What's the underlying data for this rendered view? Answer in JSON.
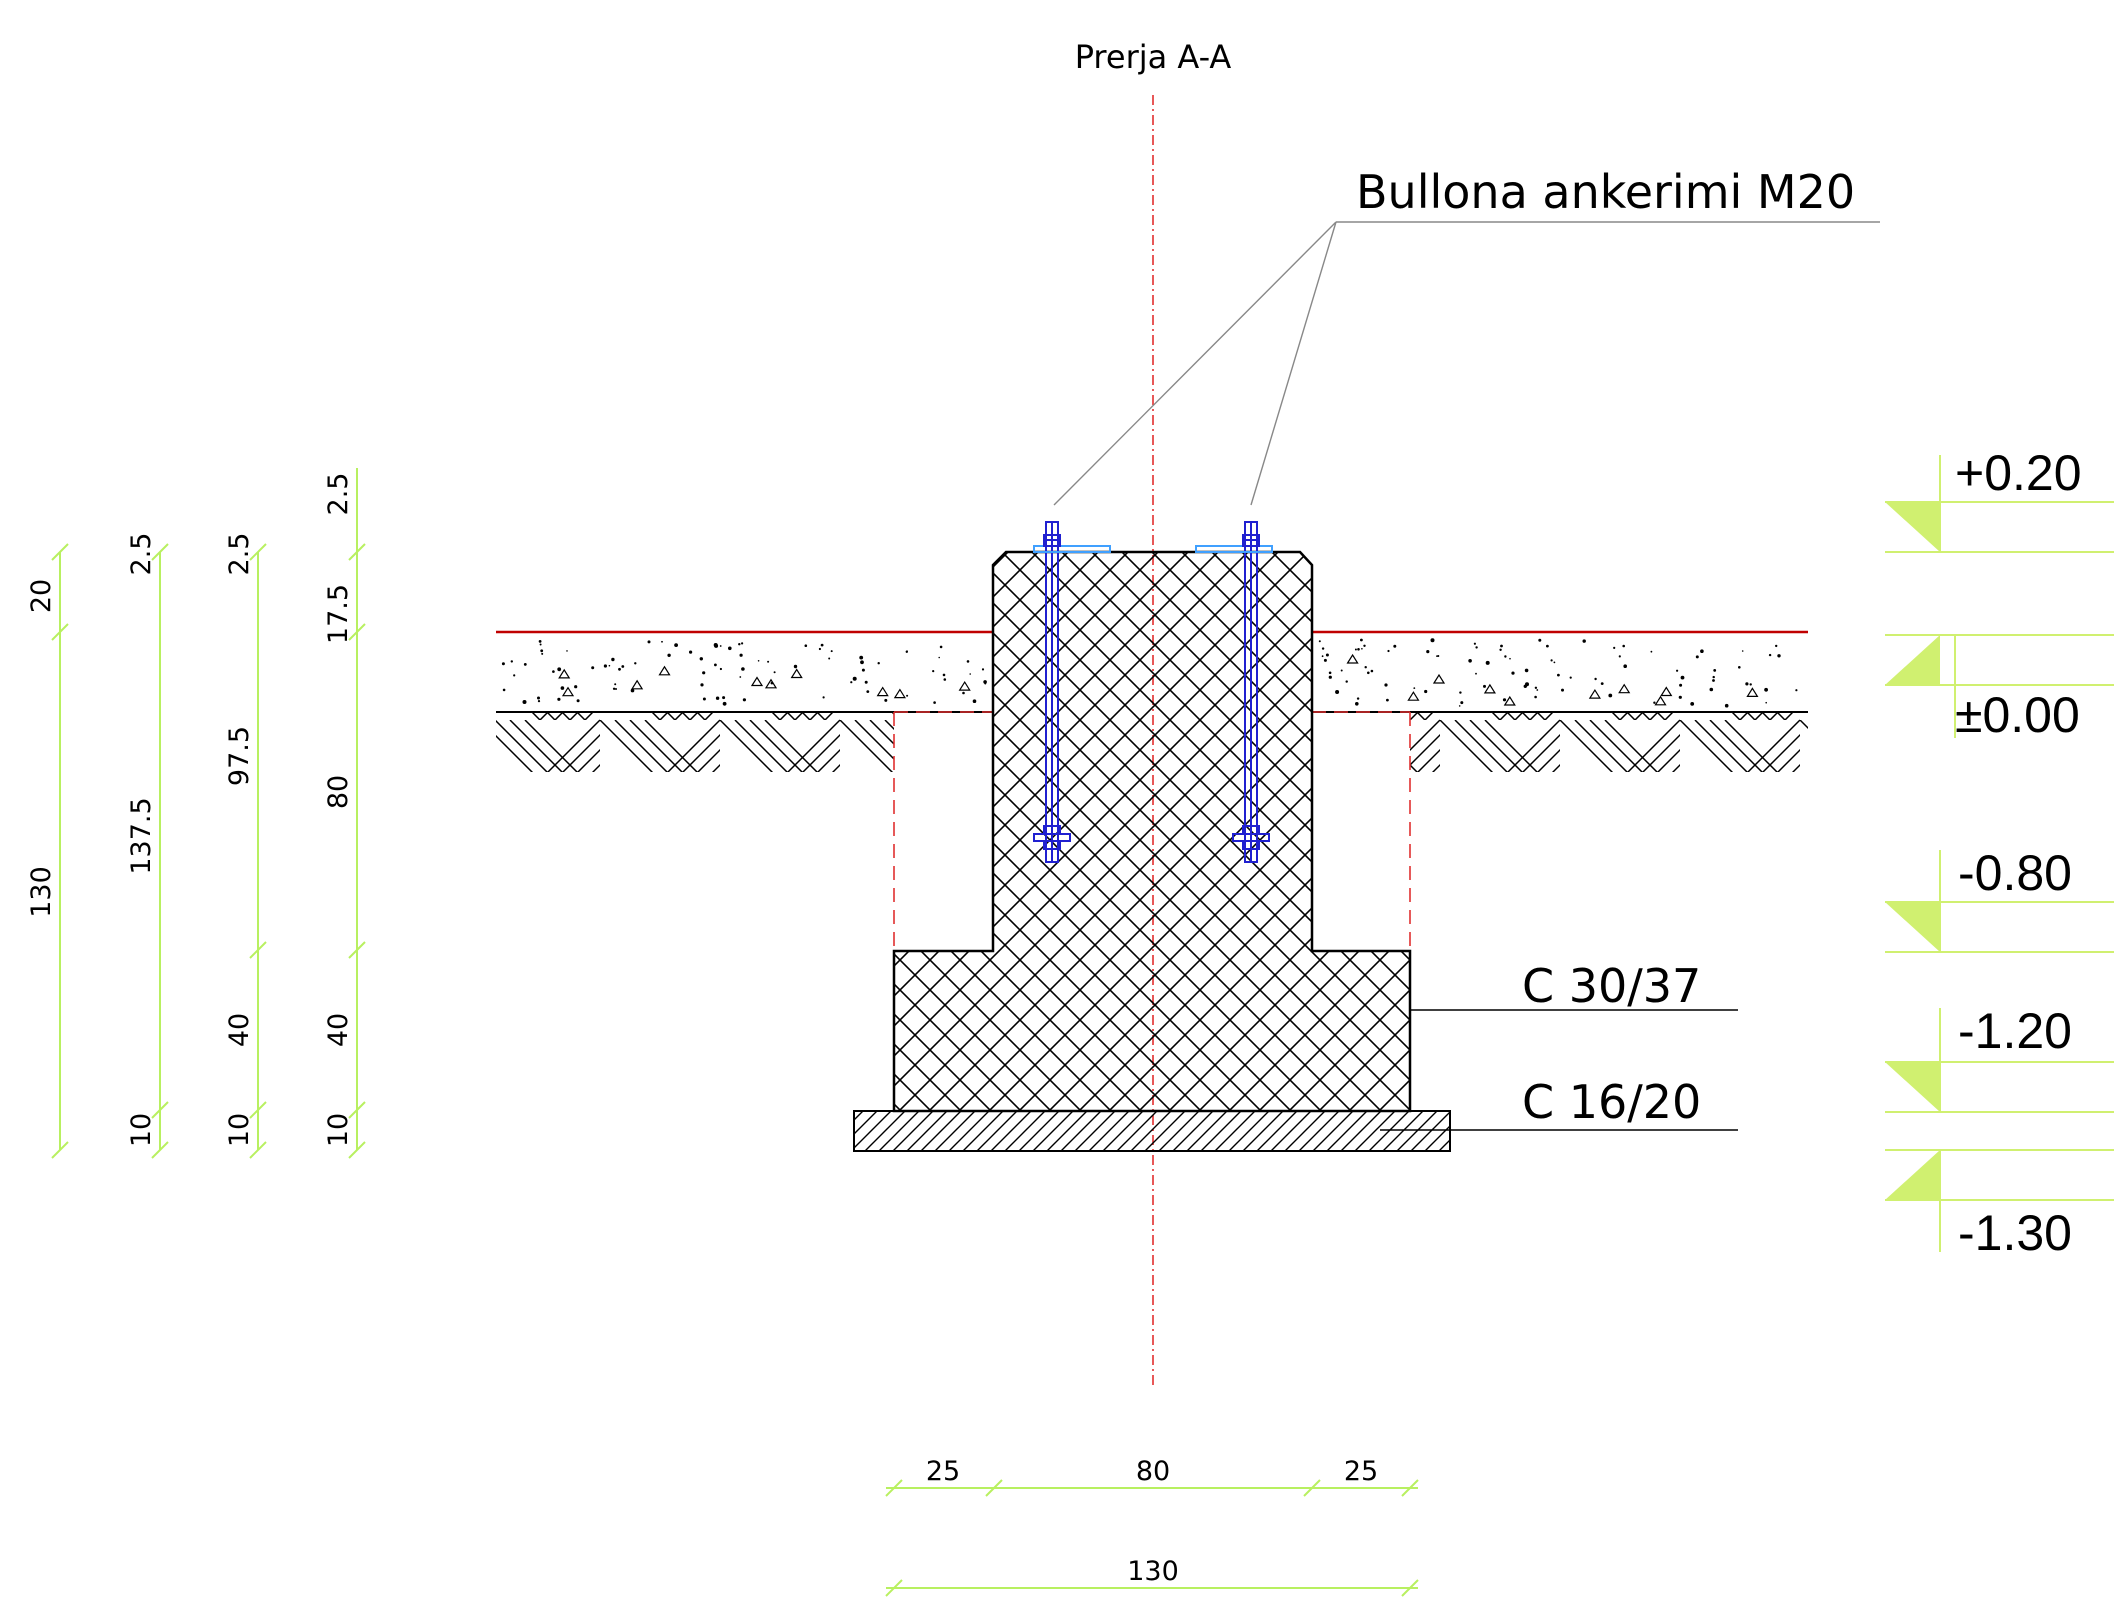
{
  "section_title": "Prerja A-A",
  "anchor_label": "Bullona ankerimi M20",
  "materials": {
    "upper": "C 30/37",
    "lower": "C 16/20"
  },
  "levels": [
    "+0.20",
    "±0.00",
    "-0.80",
    "-1.20",
    "-1.30"
  ],
  "vertical_dimensions": {
    "chain_1": [
      "20",
      "130"
    ],
    "chain_2": [
      "2.5",
      "137.5",
      "10"
    ],
    "chain_3": [
      "2.5",
      "97.5",
      "40",
      "10"
    ],
    "chain_4": [
      "2.5",
      "17.5",
      "80",
      "40",
      "10"
    ]
  },
  "horizontal_dimensions": {
    "top_chain": [
      "25",
      "80",
      "25"
    ],
    "overall": "130"
  },
  "colors": {
    "dimension": "#b8f060",
    "level_marker": "#d0f070",
    "axis": "#e02020",
    "ground_line": "#c00000",
    "anchor_bolt": "#2020d0"
  }
}
